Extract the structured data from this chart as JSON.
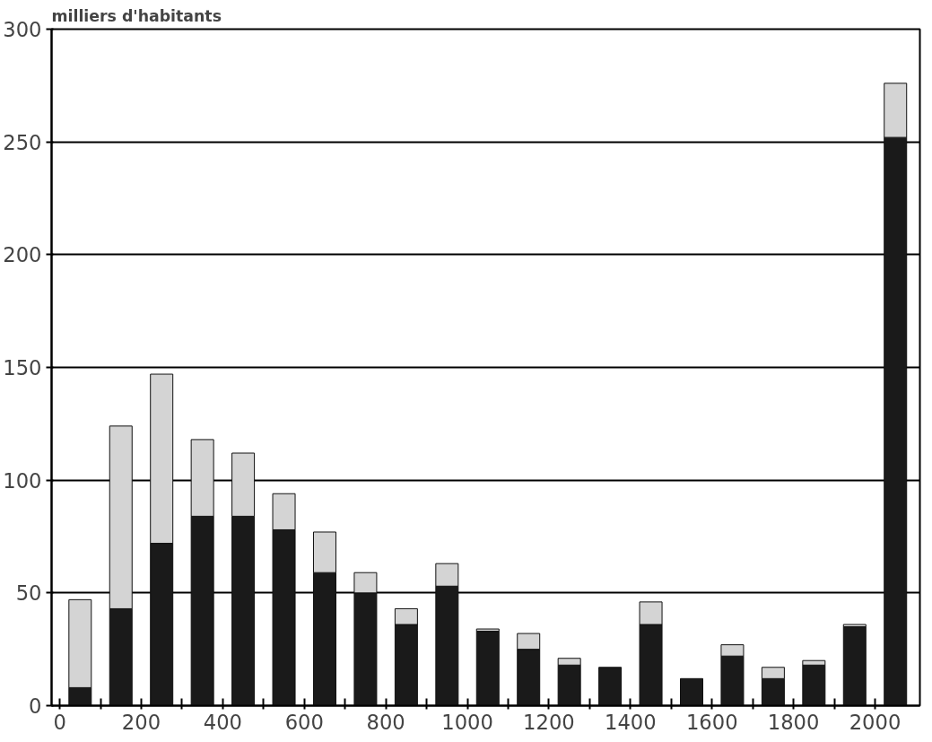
{
  "chart_data": {
    "type": "bar",
    "stacked": true,
    "ylabel": "milliers d'habitants",
    "x": [
      50,
      150,
      250,
      350,
      450,
      550,
      650,
      750,
      850,
      950,
      1050,
      1150,
      1250,
      1350,
      1450,
      1550,
      1650,
      1750,
      1850,
      1950,
      2050
    ],
    "series": [
      {
        "color": "#1a1a1a",
        "values": [
          8,
          43,
          72,
          84,
          84,
          78,
          59,
          50,
          36,
          53,
          33,
          25,
          18,
          17,
          36,
          12,
          22,
          12,
          18,
          35,
          252
        ]
      },
      {
        "color": "#d4d4d4",
        "values": [
          39,
          81,
          75,
          34,
          28,
          16,
          18,
          9,
          7,
          10,
          1,
          7,
          3,
          null,
          10,
          null,
          5,
          5,
          2,
          1,
          24
        ]
      }
    ],
    "xlim": [
      -20,
      2110
    ],
    "ylim": [
      0,
      300
    ],
    "xticks": [
      0,
      {
        "value": 100,
        "label": null
      },
      200,
      {
        "value": 300,
        "label": null
      },
      400,
      {
        "value": 500,
        "label": null
      },
      600,
      {
        "value": 700,
        "label": null
      },
      800,
      {
        "value": 900,
        "label": null
      },
      1000,
      {
        "value": 1100,
        "label": null
      },
      1200,
      {
        "value": 1300,
        "label": null
      },
      1400,
      {
        "value": 1500,
        "label": null
      },
      1600,
      {
        "value": 1700,
        "label": null
      },
      1800,
      {
        "value": 1900,
        "label": null
      },
      2000
    ],
    "yticks": [
      0,
      50,
      100,
      150,
      200,
      250,
      300
    ],
    "grid": "y"
  }
}
